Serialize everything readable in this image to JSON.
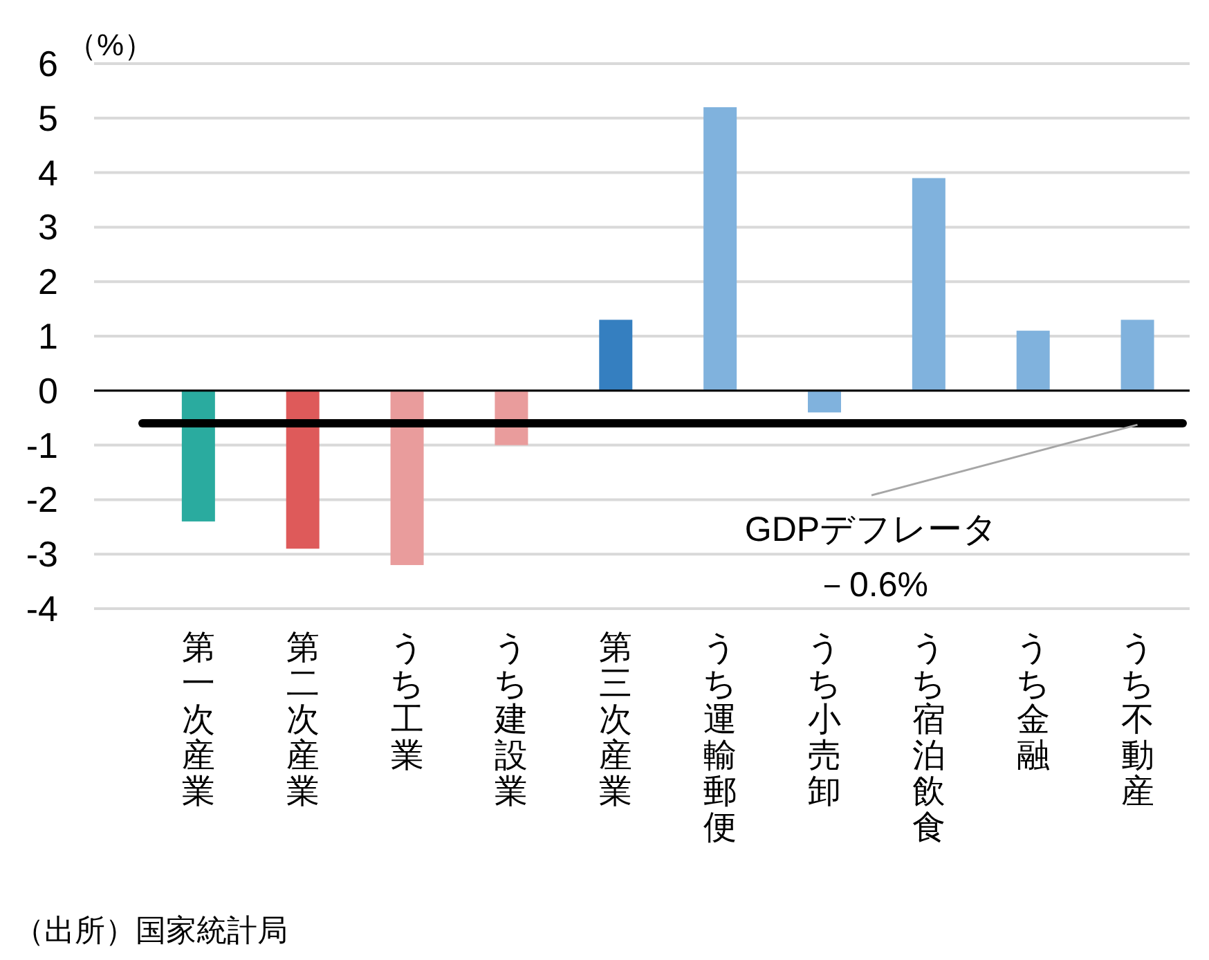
{
  "chart_data": {
    "type": "bar",
    "ylabel": "（%）",
    "categories": [
      "第一次産業",
      "第二次産業",
      "うち工業",
      "うち建設業",
      "第三次産業",
      "うち運輸郵便",
      "うち小売卸",
      "うち宿泊飲食",
      "うち金融",
      "うち不動産"
    ],
    "values": [
      -2.4,
      -2.9,
      -3.2,
      -1.0,
      1.3,
      5.2,
      -0.4,
      3.9,
      1.1,
      1.3
    ],
    "colors": [
      "#2aab9f",
      "#de5a5a",
      "#e99c9c",
      "#e99c9c",
      "#357fc0",
      "#80b2dd",
      "#80b2dd",
      "#80b2dd",
      "#80b2dd",
      "#80b2dd"
    ],
    "ylim": [
      -4,
      6
    ],
    "yticks": [
      -4,
      -3,
      -2,
      -1,
      0,
      1,
      2,
      3,
      4,
      5,
      6
    ],
    "grid": "y",
    "ref_lines": [
      {
        "axis": "y",
        "value": -0.6,
        "label": "GDPデフレータ－0.6%",
        "color": "#000000"
      }
    ],
    "annotations": [
      "（出所）国家統計局"
    ]
  }
}
